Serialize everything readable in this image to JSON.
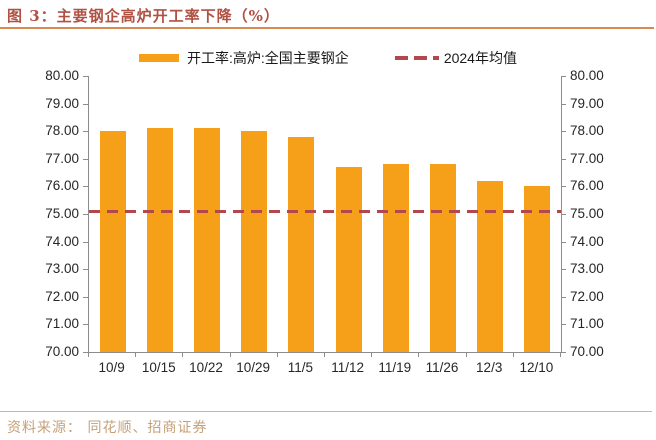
{
  "header": {
    "figure_title": "图 3：主要钢企高炉开工率下降（%）"
  },
  "legend": {
    "series_label": "开工率:高炉:全国主要钢企",
    "avg_label": "2024年均值"
  },
  "chart_data": {
    "type": "bar",
    "title": "主要钢企高炉开工率下降（%）",
    "categories": [
      "10/9",
      "10/15",
      "10/22",
      "10/29",
      "11/5",
      "11/12",
      "11/19",
      "11/26",
      "12/3",
      "12/10"
    ],
    "series": [
      {
        "name": "开工率:高炉:全国主要钢企",
        "values": [
          78.0,
          78.1,
          78.1,
          78.0,
          77.8,
          76.7,
          76.8,
          76.8,
          76.2,
          76.0
        ]
      }
    ],
    "average_line": {
      "name": "2024年均值",
      "value": 75.1
    },
    "ylim": [
      70.0,
      80.0
    ],
    "ytick_step": 1.0,
    "ytick_decimals": 2,
    "y_axis_sides": [
      "left",
      "right"
    ],
    "grid": false,
    "legend_position": "top"
  },
  "footer": {
    "source": "资料来源： 同花顺、招商证券"
  },
  "colors": {
    "bar": "#F6A01A",
    "avg_line": "#B0484D",
    "title": "#AF5244",
    "title_underline": "#D98B4F",
    "axis": "#8C8C8C",
    "tick_label": "#262626",
    "footer_text": "#C6A178",
    "footer_rule": "#D9B38C"
  }
}
